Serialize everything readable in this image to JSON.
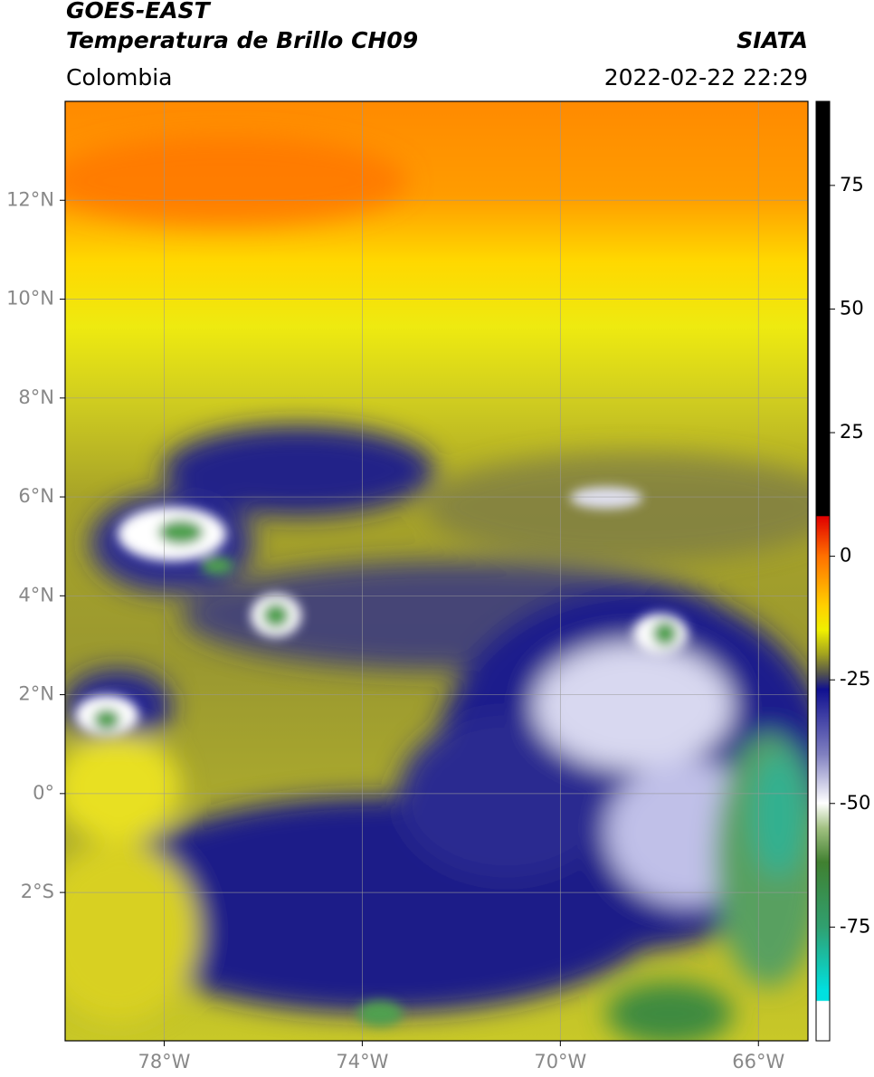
{
  "header": {
    "satellite": "GOES-EAST",
    "product": "Temperatura de Brillo CH09",
    "source": "SIATA",
    "region": "Colombia",
    "datetime": "2022-02-22 22:29"
  },
  "map": {
    "xlim": [
      -80,
      -65
    ],
    "ylim": [
      -5,
      14
    ],
    "xticks": [
      {
        "value": -78,
        "label": "78°W"
      },
      {
        "value": -74,
        "label": "74°W"
      },
      {
        "value": -70,
        "label": "70°W"
      },
      {
        "value": -66,
        "label": "66°W"
      }
    ],
    "yticks": [
      {
        "value": 12,
        "label": "12°N"
      },
      {
        "value": 10,
        "label": "10°N"
      },
      {
        "value": 8,
        "label": "8°N"
      },
      {
        "value": 6,
        "label": "6°N"
      },
      {
        "value": 4,
        "label": "4°N"
      },
      {
        "value": 2,
        "label": "2°N"
      },
      {
        "value": 0,
        "label": "0°"
      },
      {
        "value": -2,
        "label": "2°S"
      }
    ],
    "grid": true
  },
  "colorbar": {
    "lim": [
      -98,
      92
    ],
    "ticks": [
      75,
      50,
      25,
      0,
      -25,
      -50,
      -75
    ]
  }
}
